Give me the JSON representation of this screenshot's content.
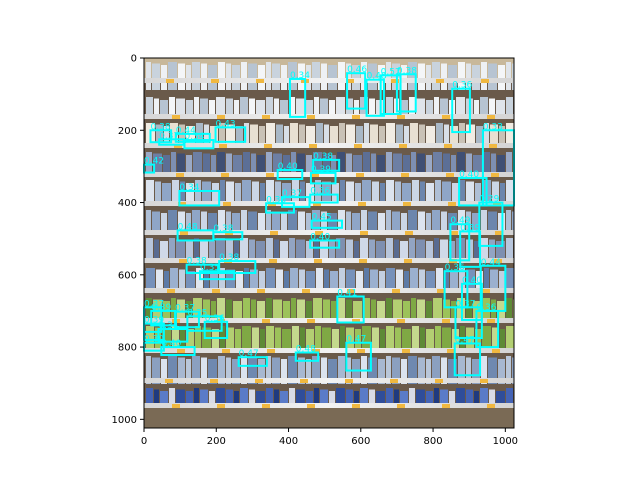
{
  "chart_data": {
    "type": "image_detections",
    "image_subject": "store shelf photo",
    "xlim": [
      0,
      1024
    ],
    "ylim": [
      1024,
      0
    ],
    "x_ticks": [
      0,
      200,
      400,
      600,
      800,
      1000
    ],
    "y_ticks": [
      0,
      200,
      400,
      600,
      800,
      1000
    ],
    "grid": false,
    "box_color": "#00ffff",
    "boxes": [
      {
        "label": "0.34",
        "x0": 404,
        "y0": 58,
        "x1": 446,
        "y1": 163
      },
      {
        "label": "0.46",
        "x0": 562,
        "y0": 42,
        "x1": 612,
        "y1": 140
      },
      {
        "label": "0.48",
        "x0": 616,
        "y0": 60,
        "x1": 664,
        "y1": 160
      },
      {
        "label": "0.57",
        "x0": 655,
        "y0": 48,
        "x1": 710,
        "y1": 155
      },
      {
        "label": "0.38",
        "x0": 700,
        "y0": 45,
        "x1": 752,
        "y1": 148
      },
      {
        "label": "0.36",
        "x0": 853,
        "y0": 85,
        "x1": 902,
        "y1": 205
      },
      {
        "label": "0.43",
        "x0": 198,
        "y0": 192,
        "x1": 280,
        "y1": 232
      },
      {
        "label": "0.33",
        "x0": 938,
        "y0": 200,
        "x1": 1024,
        "y1": 408
      },
      {
        "label": "0.38",
        "x0": 18,
        "y0": 200,
        "x1": 75,
        "y1": 233
      },
      {
        "label": "0.44",
        "x0": 88,
        "y0": 210,
        "x1": 182,
        "y1": 232
      },
      {
        "label": "0.37",
        "x0": 42,
        "y0": 225,
        "x1": 110,
        "y1": 240
      },
      {
        "label": "0.34",
        "x0": 112,
        "y0": 227,
        "x1": 192,
        "y1": 250
      },
      {
        "label": "0.42",
        "x0": 0,
        "y0": 295,
        "x1": 28,
        "y1": 317
      },
      {
        "label": "0.40",
        "x0": 370,
        "y0": 310,
        "x1": 438,
        "y1": 335
      },
      {
        "label": "0.38",
        "x0": 468,
        "y0": 282,
        "x1": 540,
        "y1": 312
      },
      {
        "label": "0.39",
        "x0": 462,
        "y0": 318,
        "x1": 530,
        "y1": 347
      },
      {
        "label": "0.34",
        "x0": 98,
        "y0": 368,
        "x1": 208,
        "y1": 408
      },
      {
        "label": "0.40",
        "x0": 872,
        "y0": 332,
        "x1": 948,
        "y1": 408
      },
      {
        "label": "0.36",
        "x0": 460,
        "y0": 378,
        "x1": 536,
        "y1": 400
      },
      {
        "label": "0.37",
        "x0": 382,
        "y0": 385,
        "x1": 458,
        "y1": 412
      },
      {
        "label": "0.36",
        "x0": 338,
        "y0": 402,
        "x1": 415,
        "y1": 428
      },
      {
        "label": "0.45",
        "x0": 464,
        "y0": 450,
        "x1": 548,
        "y1": 470
      },
      {
        "label": "0.48",
        "x0": 93,
        "y0": 477,
        "x1": 192,
        "y1": 505
      },
      {
        "label": "0.38",
        "x0": 192,
        "y0": 482,
        "x1": 272,
        "y1": 502
      },
      {
        "label": "0.49",
        "x0": 848,
        "y0": 460,
        "x1": 900,
        "y1": 560
      },
      {
        "label": "0.40",
        "x0": 460,
        "y0": 505,
        "x1": 540,
        "y1": 525
      },
      {
        "label": "0.29",
        "x0": 928,
        "y0": 400,
        "x1": 992,
        "y1": 520
      },
      {
        "label": "0.39",
        "x0": 875,
        "y0": 480,
        "x1": 930,
        "y1": 578
      },
      {
        "label": "0.38",
        "x0": 118,
        "y0": 572,
        "x1": 205,
        "y1": 595
      },
      {
        "label": "0.38",
        "x0": 208,
        "y0": 562,
        "x1": 308,
        "y1": 595
      },
      {
        "label": "0.35",
        "x0": 155,
        "y0": 590,
        "x1": 250,
        "y1": 612
      },
      {
        "label": "0.44",
        "x0": 932,
        "y0": 575,
        "x1": 1000,
        "y1": 700
      },
      {
        "label": "0.36",
        "x0": 832,
        "y0": 590,
        "x1": 895,
        "y1": 690
      },
      {
        "label": "0.41",
        "x0": 535,
        "y0": 660,
        "x1": 608,
        "y1": 732
      },
      {
        "label": "0.40",
        "x0": 880,
        "y0": 625,
        "x1": 935,
        "y1": 725
      },
      {
        "label": "0.37",
        "x0": 0,
        "y0": 690,
        "x1": 48,
        "y1": 758
      },
      {
        "label": "0.39",
        "x0": 20,
        "y0": 700,
        "x1": 88,
        "y1": 740
      },
      {
        "label": "0.37",
        "x0": 86,
        "y0": 702,
        "x1": 152,
        "y1": 745
      },
      {
        "label": "0.35",
        "x0": 120,
        "y0": 715,
        "x1": 215,
        "y1": 755
      },
      {
        "label": "0.36",
        "x0": 168,
        "y0": 730,
        "x1": 230,
        "y1": 775
      },
      {
        "label": "0.39",
        "x0": 0,
        "y0": 735,
        "x1": 55,
        "y1": 780
      },
      {
        "label": "0.34",
        "x0": 40,
        "y0": 750,
        "x1": 120,
        "y1": 785
      },
      {
        "label": "0.37",
        "x0": 862,
        "y0": 690,
        "x1": 935,
        "y1": 775
      },
      {
        "label": "0.36",
        "x0": 920,
        "y0": 700,
        "x1": 980,
        "y1": 800
      },
      {
        "label": "0.30",
        "x0": 0,
        "y0": 788,
        "x1": 55,
        "y1": 810
      },
      {
        "label": "0.40",
        "x0": 48,
        "y0": 800,
        "x1": 140,
        "y1": 822
      },
      {
        "label": "0.47",
        "x0": 560,
        "y0": 788,
        "x1": 628,
        "y1": 865
      },
      {
        "label": "0.47",
        "x0": 860,
        "y0": 790,
        "x1": 930,
        "y1": 878
      },
      {
        "label": "0.48",
        "x0": 420,
        "y0": 815,
        "x1": 482,
        "y1": 838
      },
      {
        "label": "0.47",
        "x0": 262,
        "y0": 828,
        "x1": 340,
        "y1": 852
      }
    ]
  }
}
